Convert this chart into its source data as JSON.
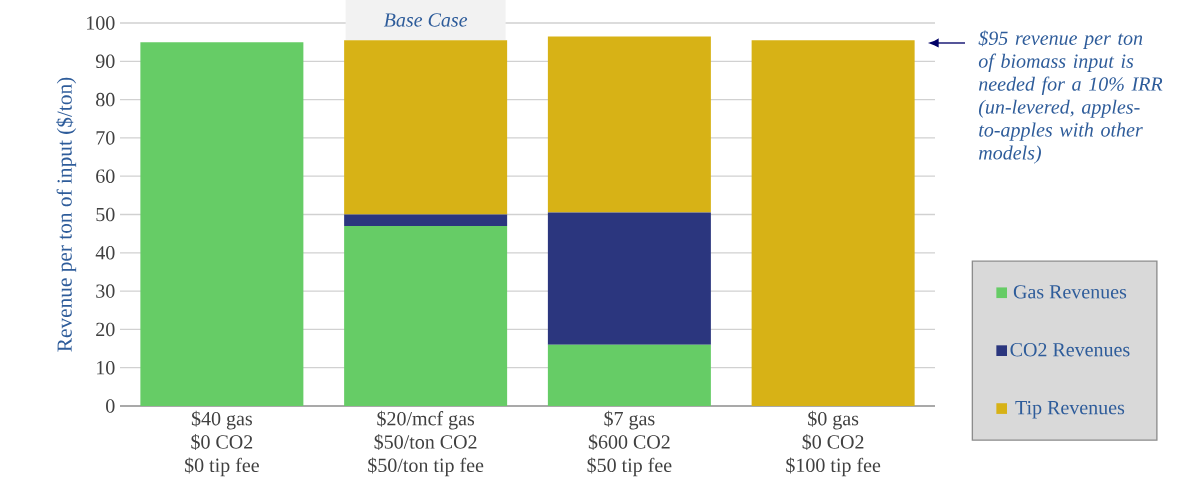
{
  "chart_data": {
    "type": "bar",
    "stacked": true,
    "ylabel": "Revenue per ton of input ($/ton)",
    "categories": [
      "$40 gas\n$0 CO2\n$0 tip fee",
      "$20/mcf gas\n$50/ton CO2\n$50/ton tip fee",
      "$7 gas\n$600 CO2\n$50 tip fee",
      "$0 gas\n$0 CO2\n$100 tip fee"
    ],
    "series": [
      {
        "name": "Gas Revenues",
        "color": "#66cc66",
        "values": [
          95,
          47,
          16,
          0
        ]
      },
      {
        "name": "CO2 Revenues",
        "color": "#2b367e",
        "values": [
          0,
          3,
          34.5,
          0
        ]
      },
      {
        "name": "Tip Revenues",
        "color": "#d7b216",
        "values": [
          0,
          45.5,
          46,
          95.5
        ]
      }
    ],
    "ylim": [
      0,
      100
    ],
    "yticks": [
      0,
      10,
      20,
      30,
      40,
      50,
      60,
      70,
      80,
      90,
      100
    ],
    "grid": "y",
    "legend": "bottom right",
    "annotations": [
      "Base Case",
      "$95 revenue per ton of biomass input is needed for a 10% IRR (un-levered,  apples-to-apples with other models)"
    ]
  }
}
